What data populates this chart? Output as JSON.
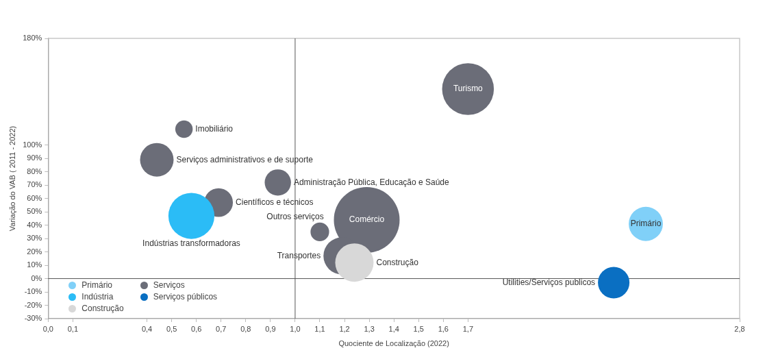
{
  "chart_data": {
    "type": "bubble",
    "xlabel": "Quociente de Localização (2022)",
    "ylabel": "Variação do VAB ( 2011 - 2022)",
    "series": [
      {
        "name": "Primário",
        "color": "#80d0f8",
        "x": [
          2.42
        ],
        "values": [
          41
        ],
        "sizes": [
          0.27
        ]
      },
      {
        "name": "Indústria",
        "color": "#2bbcf6",
        "x": [
          0.58
        ],
        "values": [
          47
        ],
        "sizes": [
          0.49
        ]
      },
      {
        "name": "Construção",
        "color": "#d8d8d8",
        "x": [
          1.24
        ],
        "values": [
          12
        ],
        "sizes": [
          0.34
        ]
      },
      {
        "name": "Serviços",
        "color": "#6b6d78",
        "x": [
          0.55,
          0.44,
          0.93,
          0.69,
          1.29,
          1.1,
          1.19,
          1.7
        ],
        "values": [
          112,
          89,
          72,
          57,
          44,
          35,
          17,
          142
        ],
        "sizes": [
          0.07,
          0.26,
          0.16,
          0.19,
          1,
          0.08,
          0.32,
          0.62
        ]
      },
      {
        "name": "Serviços públicos",
        "color": "#0a6fc2",
        "x": [
          2.29
        ],
        "values": [
          -3
        ],
        "sizes": [
          0.23
        ]
      }
    ],
    "annotations": [
      {
        "text": "Imobiliário",
        "x": 0.55,
        "y": 112
      },
      {
        "text": "Serviços administrativos e de suporte",
        "x": 0.44,
        "y": 89
      },
      {
        "text": "Administração Pública, Educação e Saúde",
        "x": 0.93,
        "y": 72
      },
      {
        "text": "Científicos e técnicos",
        "x": 0.69,
        "y": 57
      },
      {
        "text": "Indústrias transformadoras",
        "x": 0.58,
        "y": 47
      },
      {
        "text": "Outros serviços",
        "x": 1.1,
        "y": 35
      },
      {
        "text": "Comércio",
        "x": 1.29,
        "y": 44
      },
      {
        "text": "Transportes",
        "x": 1.19,
        "y": 17
      },
      {
        "text": "Construção",
        "x": 1.24,
        "y": 12
      },
      {
        "text": "Turismo",
        "x": 1.7,
        "y": 142
      },
      {
        "text": "Primário",
        "x": 2.42,
        "y": 41
      },
      {
        "text": "Utilities/Serviços publicos",
        "x": 2.29,
        "y": -3
      }
    ],
    "ref_lines": [
      {
        "axis": "x",
        "value": 1.0,
        "color": "#555555"
      },
      {
        "axis": "y",
        "value": 0,
        "color": "#555555"
      }
    ],
    "xlim": [
      0,
      2.8
    ],
    "xticks": [
      {
        "value": 0,
        "label": "0,0"
      },
      {
        "value": 0.1,
        "label": "0,1"
      },
      {
        "value": 0.4,
        "label": "0,4"
      },
      {
        "value": 0.5,
        "label": "0,5"
      },
      {
        "value": 0.6,
        "label": "0,6"
      },
      {
        "value": 0.7,
        "label": "0,7"
      },
      {
        "value": 0.8,
        "label": "0,8"
      },
      {
        "value": 0.9,
        "label": "0,9"
      },
      {
        "value": 1.0,
        "label": "1,0"
      },
      {
        "value": 1.1,
        "label": "1,1"
      },
      {
        "value": 1.2,
        "label": "1,2"
      },
      {
        "value": 1.3,
        "label": "1,3"
      },
      {
        "value": 1.4,
        "label": "1,4"
      },
      {
        "value": 1.5,
        "label": "1,5"
      },
      {
        "value": 1.6,
        "label": "1,6"
      },
      {
        "value": 1.7,
        "label": "1,7"
      },
      {
        "value": 2.8,
        "label": "2,8"
      }
    ],
    "ylim": [
      -30,
      180
    ],
    "yticks": [
      {
        "value": -30,
        "label": "-30%"
      },
      {
        "value": -20,
        "label": "-20%"
      },
      {
        "value": -10,
        "label": "-10%"
      },
      {
        "value": 0,
        "label": "0%"
      },
      {
        "value": 10,
        "label": "10%"
      },
      {
        "value": 20,
        "label": "20%"
      },
      {
        "value": 30,
        "label": "30%"
      },
      {
        "value": 40,
        "label": "40%"
      },
      {
        "value": 50,
        "label": "50%"
      },
      {
        "value": 60,
        "label": "60%"
      },
      {
        "value": 70,
        "label": "70%"
      },
      {
        "value": 80,
        "label": "80%"
      },
      {
        "value": 90,
        "label": "90%"
      },
      {
        "value": 100,
        "label": "100%"
      },
      {
        "value": 180,
        "label": "180%"
      }
    ],
    "grid": false,
    "legend": "bottom left"
  }
}
